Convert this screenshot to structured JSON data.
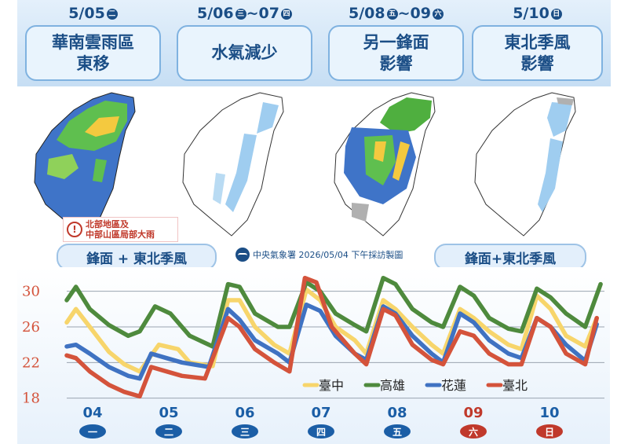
{
  "headers": [
    {
      "date_main": "5/05",
      "day": "二",
      "lines": [
        "華南雲雨區",
        "東移"
      ]
    },
    {
      "date_main": "5/06",
      "day": "三",
      "date_main2": "~07",
      "day2": "四",
      "lines": [
        "水氣減少"
      ]
    },
    {
      "date_main": "5/08",
      "day": "五",
      "date_main2": "~09",
      "day2": "六",
      "lines": [
        "另一鋒面",
        "影響"
      ]
    },
    {
      "date_main": "5/10",
      "day": "日",
      "lines": [
        "東北季風",
        "影響"
      ]
    }
  ],
  "note": {
    "lines": [
      "北部地區及",
      "中部山區局部大雨"
    ]
  },
  "pill_left": "鋒面 + 東北季風",
  "pill_right": "鋒面+東北季風",
  "credit": "中央氣象署 2026/05/04 下午採訪製圖",
  "chart_data": {
    "type": "line",
    "title": "",
    "xlabel": "",
    "ylabel": "",
    "yticks": [
      18,
      22,
      26,
      30
    ],
    "ylim": [
      17,
      32
    ],
    "xlim": [
      0,
      7
    ],
    "grid": true,
    "legend_position": "bottom-right",
    "categories": [
      "04",
      "05",
      "06",
      "07",
      "08",
      "09",
      "10"
    ],
    "weekdays": [
      "一",
      "二",
      "三",
      "四",
      "五",
      "六",
      "日"
    ],
    "weekday_colors": [
      "#1b5ea6",
      "#1b5ea6",
      "#1b5ea6",
      "#1b5ea6",
      "#1b5ea6",
      "#c0392b",
      "#c0392b"
    ],
    "category_colors": [
      "#1b5ea6",
      "#1b5ea6",
      "#1b5ea6",
      "#1b5ea6",
      "#1b5ea6",
      "#c0392b",
      "#1b5ea6"
    ],
    "series": [
      {
        "name": "臺中",
        "color": "#f7d56b",
        "x": [
          0,
          0.12,
          0.3,
          0.55,
          0.75,
          0.95,
          1.2,
          1.45,
          1.6,
          1.9,
          2.1,
          2.25,
          2.45,
          2.7,
          2.9,
          3.12,
          3.3,
          3.5,
          3.75,
          3.9,
          4.12,
          4.28,
          4.5,
          4.75,
          4.9,
          5.12,
          5.3,
          5.5,
          5.75,
          5.92,
          6.12,
          6.3,
          6.5,
          6.75,
          6.9
        ],
        "y": [
          26.5,
          28,
          26,
          23.2,
          21.8,
          21,
          24,
          23.5,
          22,
          21.6,
          29,
          29,
          26,
          24,
          23,
          30.2,
          29,
          26,
          24.5,
          23,
          29,
          28,
          26,
          24,
          23,
          28,
          27,
          25.5,
          24,
          23.5,
          29.5,
          28,
          25,
          23.8,
          27
        ]
      },
      {
        "name": "高雄",
        "color": "#4e8a3d",
        "x": [
          0,
          0.12,
          0.3,
          0.55,
          0.8,
          0.95,
          1.15,
          1.35,
          1.6,
          1.9,
          2.1,
          2.25,
          2.45,
          2.75,
          2.9,
          3.12,
          3.3,
          3.5,
          3.75,
          3.9,
          4.12,
          4.28,
          4.5,
          4.75,
          4.9,
          5.12,
          5.3,
          5.5,
          5.75,
          5.92,
          6.12,
          6.3,
          6.5,
          6.75,
          6.95
        ],
        "y": [
          29,
          30.5,
          28,
          26.2,
          25,
          25.5,
          28.3,
          27.5,
          25,
          23.8,
          30.8,
          30.5,
          27.5,
          26,
          26,
          31,
          30,
          27.5,
          26.2,
          25.5,
          31.5,
          30.8,
          28,
          26.5,
          26,
          30.5,
          29.5,
          27,
          25.8,
          25.5,
          30.3,
          29.3,
          27.5,
          26,
          30.8
        ]
      },
      {
        "name": "花蓮",
        "color": "#3f72c2",
        "x": [
          0,
          0.12,
          0.3,
          0.55,
          0.8,
          0.95,
          1.1,
          1.3,
          1.5,
          1.85,
          2.1,
          2.25,
          2.45,
          2.75,
          2.9,
          3.12,
          3.3,
          3.5,
          3.75,
          3.9,
          4.12,
          4.28,
          4.5,
          4.75,
          4.9,
          5.12,
          5.3,
          5.5,
          5.75,
          5.92,
          6.12,
          6.3,
          6.5,
          6.75,
          6.9
        ],
        "y": [
          23.8,
          24,
          23,
          21.5,
          20.5,
          20.2,
          23,
          22.5,
          22,
          21.5,
          28,
          26.8,
          24.5,
          23,
          22,
          28.5,
          27.8,
          25,
          23,
          22.3,
          28.3,
          27.5,
          25,
          23,
          22,
          27.5,
          26.5,
          24.5,
          23,
          22.5,
          27,
          26,
          24,
          22.2,
          26.3
        ]
      },
      {
        "name": "臺北",
        "color": "#d4533b",
        "x": [
          0,
          0.12,
          0.3,
          0.55,
          0.75,
          0.95,
          1.1,
          1.3,
          1.5,
          1.8,
          2.1,
          2.25,
          2.45,
          2.7,
          2.9,
          3.1,
          3.25,
          3.45,
          3.75,
          3.9,
          4.12,
          4.28,
          4.5,
          4.75,
          4.9,
          5.12,
          5.3,
          5.5,
          5.75,
          5.92,
          6.12,
          6.3,
          6.5,
          6.75,
          6.9
        ],
        "y": [
          22.8,
          22.5,
          21,
          19.5,
          18.7,
          18.2,
          21.5,
          21,
          20.5,
          20.2,
          27,
          26,
          23.5,
          22,
          21,
          31.5,
          31,
          26,
          23,
          21.8,
          28,
          27.3,
          24,
          22.3,
          21.8,
          25.5,
          25,
          23,
          21.8,
          21.8,
          27,
          26,
          23,
          21.8,
          27
        ]
      }
    ]
  }
}
